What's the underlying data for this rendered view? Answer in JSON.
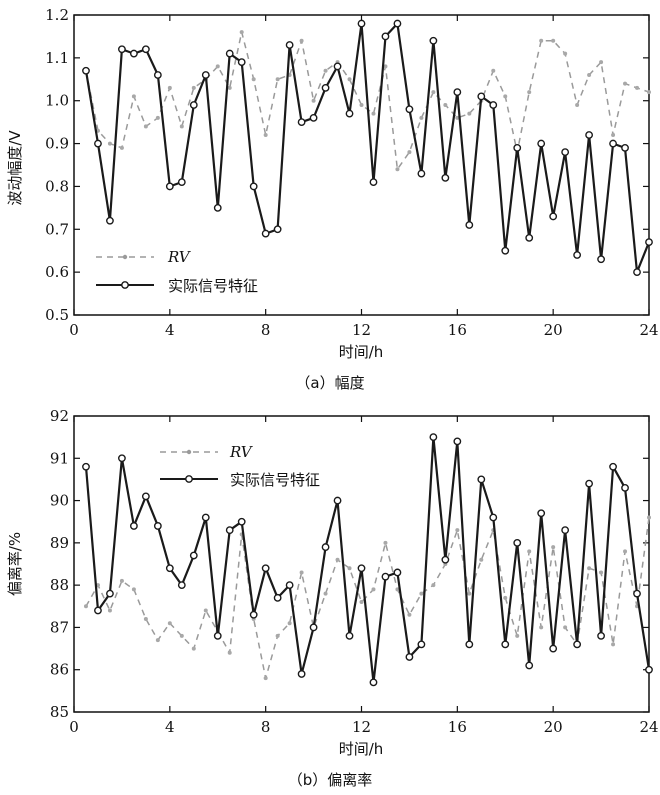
{
  "chart_data": [
    {
      "type": "line",
      "caption": "（a）幅度",
      "xlabel": "时间/h",
      "ylabel": "波动幅度/V",
      "xlim": [
        0,
        24
      ],
      "ylim": [
        0.5,
        1.2
      ],
      "xticks": [
        0,
        4,
        8,
        12,
        16,
        20,
        24
      ],
      "yticks": [
        0.5,
        0.6,
        0.7,
        0.8,
        0.9,
        1.0,
        1.1,
        1.2
      ],
      "ytick_labels": [
        "0.5",
        "0.6",
        "0.7",
        "0.8",
        "0.9",
        "1.0",
        "1.1",
        "1.2"
      ],
      "legend_position": "lower-left",
      "series": [
        {
          "name": "RV",
          "style": "dashed",
          "color": "#9a9a9a",
          "x": [
            0.5,
            1.0,
            1.5,
            2.0,
            2.5,
            3.0,
            3.5,
            4.0,
            4.5,
            5.0,
            5.5,
            6.0,
            6.5,
            7.0,
            7.5,
            8.0,
            8.5,
            9.0,
            9.5,
            10.0,
            10.5,
            11.0,
            11.5,
            12.0,
            12.5,
            13.0,
            13.5,
            14.0,
            14.5,
            15.0,
            15.5,
            16.0,
            16.5,
            17.0,
            17.5,
            18.0,
            18.5,
            19.0,
            19.5,
            20.0,
            20.5,
            21.0,
            21.5,
            22.0,
            22.5,
            23.0,
            23.5,
            24.0
          ],
          "y": [
            1.07,
            0.93,
            0.9,
            0.89,
            1.01,
            0.94,
            0.96,
            1.03,
            0.94,
            1.03,
            1.05,
            1.08,
            1.03,
            1.16,
            1.05,
            0.92,
            1.05,
            1.06,
            1.14,
            1.0,
            1.07,
            1.09,
            1.05,
            0.99,
            0.97,
            1.08,
            0.84,
            0.88,
            0.96,
            1.02,
            0.99,
            0.96,
            0.97,
            1.0,
            1.07,
            1.01,
            0.88,
            1.02,
            1.14,
            1.14,
            1.11,
            0.99,
            1.06,
            1.09,
            0.92,
            1.04,
            1.03,
            1.02
          ]
        },
        {
          "name": "实际信号特征",
          "style": "solid-circle",
          "color": "#1a1a1a",
          "x": [
            0.5,
            1.0,
            1.5,
            2.0,
            2.5,
            3.0,
            3.5,
            4.0,
            4.5,
            5.0,
            5.5,
            6.0,
            6.5,
            7.0,
            7.5,
            8.0,
            8.5,
            9.0,
            9.5,
            10.0,
            10.5,
            11.0,
            11.5,
            12.0,
            12.5,
            13.0,
            13.5,
            14.0,
            14.5,
            15.0,
            15.5,
            16.0,
            16.5,
            17.0,
            17.5,
            18.0,
            18.5,
            19.0,
            19.5,
            20.0,
            20.5,
            21.0,
            21.5,
            22.0,
            22.5,
            23.0,
            23.5,
            24.0
          ],
          "y": [
            1.07,
            0.9,
            0.72,
            1.12,
            1.11,
            1.12,
            1.06,
            0.8,
            0.81,
            0.99,
            1.06,
            0.75,
            1.11,
            1.09,
            0.8,
            0.69,
            0.7,
            1.13,
            0.95,
            0.96,
            1.03,
            1.08,
            0.97,
            1.18,
            0.81,
            1.15,
            1.18,
            0.98,
            0.83,
            1.14,
            0.82,
            1.02,
            0.71,
            1.01,
            0.99,
            0.65,
            0.89,
            0.68,
            0.9,
            0.73,
            0.88,
            0.64,
            0.92,
            0.63,
            0.9,
            0.89,
            0.6,
            0.67
          ]
        }
      ]
    },
    {
      "type": "line",
      "caption": "（b）偏离率",
      "xlabel": "时间/h",
      "ylabel": "偏离率/%",
      "xlim": [
        0,
        24
      ],
      "ylim": [
        85,
        92
      ],
      "xticks": [
        0,
        4,
        8,
        12,
        16,
        20,
        24
      ],
      "yticks": [
        85,
        86,
        87,
        88,
        89,
        90,
        91,
        92
      ],
      "ytick_labels": [
        "85",
        "86",
        "87",
        "88",
        "89",
        "90",
        "91",
        "92"
      ],
      "legend_position": "top-left",
      "series": [
        {
          "name": "RV",
          "style": "dashed",
          "color": "#9a9a9a",
          "x": [
            0.5,
            1.0,
            1.5,
            2.0,
            2.5,
            3.0,
            3.5,
            4.0,
            4.5,
            5.0,
            5.5,
            6.0,
            6.5,
            7.0,
            7.5,
            8.0,
            8.5,
            9.0,
            9.5,
            10.0,
            10.5,
            11.0,
            11.5,
            12.0,
            12.5,
            13.0,
            13.5,
            14.0,
            14.5,
            15.0,
            15.5,
            16.0,
            16.5,
            17.0,
            17.5,
            18.0,
            18.5,
            19.0,
            19.5,
            20.0,
            20.5,
            21.0,
            21.5,
            22.0,
            22.5,
            23.0,
            23.5,
            24.0
          ],
          "y": [
            87.5,
            88.0,
            87.4,
            88.1,
            87.9,
            87.2,
            86.7,
            87.1,
            86.8,
            86.5,
            87.4,
            86.9,
            86.4,
            89.2,
            87.2,
            85.8,
            86.8,
            87.1,
            88.3,
            87.0,
            87.8,
            88.6,
            88.4,
            87.6,
            87.9,
            89.0,
            87.9,
            87.3,
            87.8,
            88.0,
            88.5,
            89.3,
            87.8,
            88.6,
            89.3,
            87.7,
            86.8,
            88.8,
            87.0,
            88.9,
            87.0,
            86.6,
            88.4,
            88.3,
            86.6,
            88.8,
            87.5,
            89.6
          ]
        },
        {
          "name": "实际信号特征",
          "style": "solid-circle",
          "color": "#1a1a1a",
          "x": [
            0.5,
            1.0,
            1.5,
            2.0,
            2.5,
            3.0,
            3.5,
            4.0,
            4.5,
            5.0,
            5.5,
            6.0,
            6.5,
            7.0,
            7.5,
            8.0,
            8.5,
            9.0,
            9.5,
            10.0,
            10.5,
            11.0,
            11.5,
            12.0,
            12.5,
            13.0,
            13.5,
            14.0,
            14.5,
            15.0,
            15.5,
            16.0,
            16.5,
            17.0,
            17.5,
            18.0,
            18.5,
            19.0,
            19.5,
            20.0,
            20.5,
            21.0,
            21.5,
            22.0,
            22.5,
            23.0,
            23.5,
            24.0
          ],
          "y": [
            90.8,
            87.4,
            87.8,
            91.0,
            89.4,
            90.1,
            89.4,
            88.4,
            88.0,
            88.7,
            89.6,
            86.8,
            89.3,
            89.5,
            87.3,
            88.4,
            87.7,
            88.0,
            85.9,
            87.0,
            88.9,
            90.0,
            86.8,
            88.4,
            85.7,
            88.2,
            88.3,
            86.3,
            86.6,
            91.5,
            88.6,
            91.4,
            86.6,
            90.5,
            89.6,
            86.6,
            89.0,
            86.1,
            89.7,
            86.5,
            89.3,
            86.6,
            90.4,
            86.8,
            90.8,
            90.3,
            87.8,
            86.0
          ]
        }
      ]
    }
  ]
}
